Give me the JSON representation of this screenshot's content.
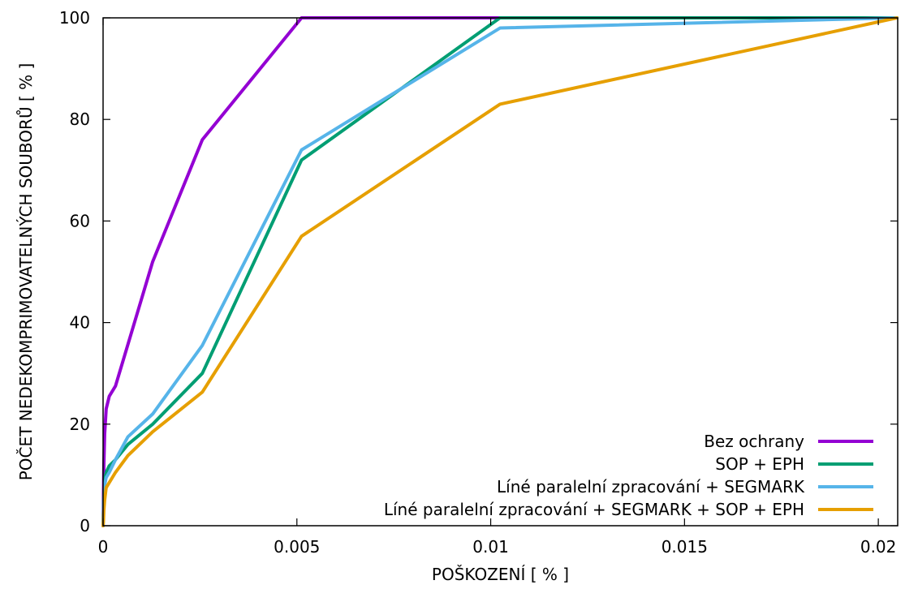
{
  "chart_data": {
    "type": "line",
    "xlabel": "POŠKOZENÍ [ % ]",
    "ylabel": "POČET NEDEKOMPRIMOVATELNÝCH SOUBORŮ [ % ]",
    "xlim": [
      0,
      0.0205
    ],
    "ylim": [
      0,
      100
    ],
    "x_ticks": [
      0,
      0.005,
      0.01,
      0.015,
      0.02
    ],
    "x_tick_labels": [
      "0",
      "0.005",
      "0.01",
      "0.015",
      "0.02"
    ],
    "y_ticks": [
      0,
      20,
      40,
      60,
      80,
      100
    ],
    "y_tick_labels": [
      "0",
      "20",
      "40",
      "60",
      "80",
      "100"
    ],
    "grid": false,
    "legend_position": "bottom-right",
    "series": [
      {
        "name": "Bez ochrany",
        "color": "#9400d3",
        "x": [
          0,
          1e-05,
          2e-05,
          4e-05,
          8e-05,
          0.00016,
          0.00032,
          0.00128,
          0.00256,
          0.00512,
          0.01024,
          0.02048
        ],
        "y": [
          0,
          6,
          12,
          18,
          23,
          25.5,
          27.5,
          52,
          76,
          100,
          100,
          100
        ]
      },
      {
        "name": "SOP + EPH",
        "color": "#009e73",
        "x": [
          0,
          1e-05,
          2e-05,
          4e-05,
          8e-05,
          0.00016,
          0.00032,
          0.00064,
          0.00128,
          0.00256,
          0.00512,
          0.01024,
          0.02048
        ],
        "y": [
          0,
          3,
          6,
          9,
          10.5,
          11.8,
          13,
          16,
          20,
          30,
          72,
          100,
          100
        ]
      },
      {
        "name": "Líné paralelní zpracování + SEGMARK",
        "color": "#56b4e9",
        "x": [
          0,
          1e-05,
          2e-05,
          4e-05,
          8e-05,
          0.00016,
          0.00032,
          0.00064,
          0.00128,
          0.00256,
          0.00512,
          0.01024,
          0.02048
        ],
        "y": [
          0,
          3,
          5.5,
          8,
          9.5,
          10.5,
          13,
          17.5,
          22,
          35.5,
          74,
          98,
          100
        ]
      },
      {
        "name": "Líné paralelní zpracování + SEGMARK + SOP + EPH",
        "color": "#e69f00",
        "x": [
          0,
          1e-05,
          2e-05,
          4e-05,
          8e-05,
          0.00016,
          0.00032,
          0.00064,
          0.00128,
          0.00256,
          0.00512,
          0.01024,
          0.02048
        ],
        "y": [
          0,
          1,
          3,
          5,
          7.5,
          8.5,
          10.5,
          13.8,
          18.5,
          26.3,
          57,
          83,
          100
        ]
      }
    ]
  }
}
